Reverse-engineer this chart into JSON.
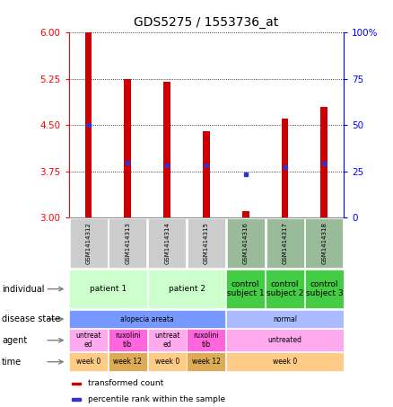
{
  "title": "GDS5275 / 1553736_at",
  "samples": [
    "GSM1414312",
    "GSM1414313",
    "GSM1414314",
    "GSM1414315",
    "GSM1414316",
    "GSM1414317",
    "GSM1414318"
  ],
  "bar_heights": [
    6.0,
    5.25,
    5.2,
    4.4,
    3.1,
    4.6,
    4.8
  ],
  "bar_base": 3.0,
  "percentile_values": [
    4.5,
    3.9,
    3.85,
    3.85,
    3.7,
    3.82,
    3.88
  ],
  "ylim_left": [
    3.0,
    6.0
  ],
  "ylim_right": [
    0,
    100
  ],
  "yticks_left": [
    3,
    3.75,
    4.5,
    5.25,
    6
  ],
  "yticks_right": [
    0,
    25,
    50,
    75,
    100
  ],
  "bar_color": "#cc0000",
  "dot_color": "#3333cc",
  "individual_row": {
    "groups": [
      {
        "label": "patient 1",
        "span": [
          0,
          2
        ],
        "color": "#ccffcc"
      },
      {
        "label": "patient 2",
        "span": [
          2,
          4
        ],
        "color": "#ccffcc"
      },
      {
        "label": "control\nsubject 1",
        "span": [
          4,
          5
        ],
        "color": "#44cc44"
      },
      {
        "label": "control\nsubject 2",
        "span": [
          5,
          6
        ],
        "color": "#44cc44"
      },
      {
        "label": "control\nsubject 3",
        "span": [
          6,
          7
        ],
        "color": "#44cc44"
      }
    ]
  },
  "disease_state_row": {
    "groups": [
      {
        "label": "alopecia areata",
        "span": [
          0,
          4
        ],
        "color": "#7799ff"
      },
      {
        "label": "normal",
        "span": [
          4,
          7
        ],
        "color": "#aabbff"
      }
    ]
  },
  "agent_row": {
    "groups": [
      {
        "label": "untreat\ned",
        "span": [
          0,
          1
        ],
        "color": "#ffaaee"
      },
      {
        "label": "ruxolini\ntib",
        "span": [
          1,
          2
        ],
        "color": "#ff66dd"
      },
      {
        "label": "untreat\ned",
        "span": [
          2,
          3
        ],
        "color": "#ffaaee"
      },
      {
        "label": "ruxolini\ntib",
        "span": [
          3,
          4
        ],
        "color": "#ff66dd"
      },
      {
        "label": "untreated",
        "span": [
          4,
          7
        ],
        "color": "#ffaaee"
      }
    ]
  },
  "time_row": {
    "groups": [
      {
        "label": "week 0",
        "span": [
          0,
          1
        ],
        "color": "#ffcc88"
      },
      {
        "label": "week 12",
        "span": [
          1,
          2
        ],
        "color": "#ddaa55"
      },
      {
        "label": "week 0",
        "span": [
          2,
          3
        ],
        "color": "#ffcc88"
      },
      {
        "label": "week 12",
        "span": [
          3,
          4
        ],
        "color": "#ddaa55"
      },
      {
        "label": "week 0",
        "span": [
          4,
          7
        ],
        "color": "#ffcc88"
      }
    ]
  },
  "row_labels": [
    "individual",
    "disease state",
    "agent",
    "time"
  ],
  "sample_header_color": "#cccccc",
  "sample_header_green_color": "#99bb99",
  "legend_items": [
    {
      "label": "transformed count",
      "color": "#cc0000"
    },
    {
      "label": "percentile rank within the sample",
      "color": "#3333cc"
    }
  ]
}
